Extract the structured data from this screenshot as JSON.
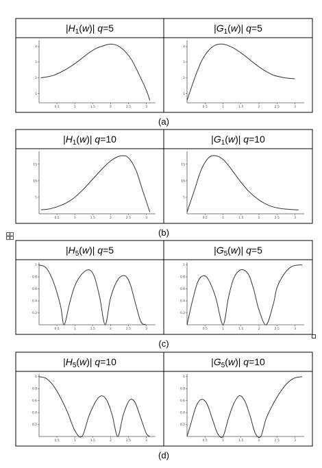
{
  "table_controls": {
    "move_handle": "move-cross-icon",
    "resize_handle": "resize-square-icon"
  },
  "chart_data": [
    {
      "caption": "(a)",
      "type": "line",
      "panels": [
        {
          "title": {
            "mag": "H",
            "sub": "1",
            "arg": "(w)",
            "q": "q=5"
          },
          "x": [
            0.05,
            0.2,
            0.4,
            0.6,
            0.8,
            1.0,
            1.2,
            1.4,
            1.6,
            1.8,
            2.0,
            2.2,
            2.4,
            2.6,
            2.8,
            3.0,
            3.1
          ],
          "y": [
            2.0,
            2.05,
            2.15,
            2.35,
            2.6,
            2.9,
            3.25,
            3.6,
            3.88,
            4.05,
            4.15,
            4.05,
            3.7,
            3.1,
            2.2,
            1.2,
            0.55
          ],
          "xticks": [
            "0.5",
            "1",
            "1.5",
            "2",
            "2.5",
            "3"
          ],
          "xtick_values": [
            0.5,
            1,
            1.5,
            2,
            2.5,
            3
          ],
          "yticks": [
            "1",
            "2",
            "3",
            "4"
          ],
          "ytick_values": [
            1,
            2,
            3,
            4
          ],
          "xlim": [
            0,
            3.2
          ],
          "ylim": [
            0.4,
            4.3
          ]
        },
        {
          "title": {
            "mag": "G",
            "sub": "1",
            "arg": "(w)",
            "q": "q=5"
          },
          "x": [
            0.0,
            0.2,
            0.4,
            0.6,
            0.8,
            1.0,
            1.2,
            1.4,
            1.6,
            1.8,
            2.0,
            2.2,
            2.4,
            2.6,
            2.8,
            3.0
          ],
          "y": [
            0.55,
            1.9,
            3.05,
            3.75,
            4.1,
            4.15,
            4.0,
            3.75,
            3.42,
            3.05,
            2.7,
            2.4,
            2.17,
            2.05,
            1.97,
            1.93
          ],
          "xticks": [
            "0.5",
            "1",
            "1.5",
            "2",
            "2.5",
            "3"
          ],
          "xtick_values": [
            0.5,
            1,
            1.5,
            2,
            2.5,
            3
          ],
          "yticks": [
            "1",
            "2",
            "3",
            "4"
          ],
          "ytick_values": [
            1,
            2,
            3,
            4
          ],
          "xlim": [
            0,
            3.2
          ],
          "ylim": [
            0.4,
            4.3
          ]
        }
      ]
    },
    {
      "caption": "(b)",
      "type": "line",
      "panels": [
        {
          "title": {
            "mag": "H",
            "sub": "1",
            "arg": "(w)",
            "q": "q=10"
          },
          "x": [
            0.05,
            0.3,
            0.6,
            0.9,
            1.2,
            1.5,
            1.8,
            2.0,
            2.2,
            2.35,
            2.5,
            2.7,
            2.9,
            3.1
          ],
          "y": [
            1.2,
            1.5,
            2.5,
            4.2,
            7.0,
            10.5,
            14.0,
            16.0,
            17.3,
            17.6,
            17.0,
            13.5,
            7.0,
            0.5
          ],
          "xticks": [
            "0.5",
            "1",
            "1.5",
            "2",
            "2.5",
            "3"
          ],
          "xtick_values": [
            0.5,
            1,
            1.5,
            2,
            2.5,
            3
          ],
          "yticks": [
            "5",
            "10",
            "15"
          ],
          "ytick_values": [
            5,
            10,
            15
          ],
          "xlim": [
            0,
            3.2
          ],
          "ylim": [
            0,
            18.5
          ]
        },
        {
          "title": {
            "mag": "G",
            "sub": "1",
            "arg": "(w)",
            "q": "q=10"
          },
          "x": [
            0.0,
            0.2,
            0.4,
            0.6,
            0.8,
            1.0,
            1.2,
            1.4,
            1.7,
            2.0,
            2.3,
            2.6,
            2.9,
            3.1
          ],
          "y": [
            0.5,
            7.0,
            13.5,
            17.0,
            17.6,
            16.5,
            14.0,
            11.0,
            7.0,
            4.2,
            2.4,
            1.6,
            1.3,
            1.2
          ],
          "xticks": [
            "0.5",
            "1",
            "1.5",
            "2",
            "2.5",
            "3"
          ],
          "xtick_values": [
            0.5,
            1,
            1.5,
            2,
            2.5,
            3
          ],
          "yticks": [
            "5",
            "10",
            "15"
          ],
          "ytick_values": [
            5,
            10,
            15
          ],
          "xlim": [
            0,
            3.2
          ],
          "ylim": [
            0,
            18.5
          ]
        }
      ]
    },
    {
      "caption": "(c)",
      "type": "line",
      "panels": [
        {
          "title": {
            "mag": "H",
            "sub": "5",
            "arg": "(w)",
            "q": "q=5"
          },
          "x": [
            0.0,
            0.2,
            0.4,
            0.6,
            0.7,
            0.85,
            1.0,
            1.2,
            1.4,
            1.55,
            1.7,
            1.85,
            2.0,
            2.2,
            2.4,
            2.55,
            2.7,
            2.85,
            3.0
          ],
          "y": [
            1.0,
            0.95,
            0.72,
            0.32,
            0.0,
            0.35,
            0.65,
            0.85,
            0.92,
            0.8,
            0.45,
            0.0,
            0.45,
            0.75,
            0.82,
            0.68,
            0.35,
            0.05,
            0.0
          ],
          "xticks": [
            "0.5",
            "1",
            "1.5",
            "2",
            "2.5",
            "3"
          ],
          "xtick_values": [
            0.5,
            1,
            1.5,
            2,
            2.5,
            3
          ],
          "yticks": [
            "0.2",
            "0.4",
            "0.6",
            "0.8",
            "1"
          ],
          "ytick_values": [
            0.2,
            0.4,
            0.6,
            0.8,
            1
          ],
          "xlim": [
            0,
            3.2
          ],
          "ylim": [
            0,
            1.02
          ]
        },
        {
          "title": {
            "mag": "G",
            "sub": "5",
            "arg": "(w)",
            "q": "q=5"
          },
          "x": [
            0.0,
            0.15,
            0.3,
            0.45,
            0.6,
            0.8,
            1.0,
            1.15,
            1.3,
            1.5,
            1.7,
            1.85,
            2.0,
            2.2,
            2.4,
            2.5,
            2.7,
            2.9,
            3.1,
            3.2
          ],
          "y": [
            0.0,
            0.4,
            0.72,
            0.82,
            0.75,
            0.45,
            0.0,
            0.45,
            0.78,
            0.92,
            0.85,
            0.6,
            0.25,
            0.0,
            0.35,
            0.62,
            0.85,
            0.97,
            1.0,
            1.0
          ],
          "xticks": [
            "0.5",
            "1",
            "1.5",
            "2",
            "2.5",
            "3"
          ],
          "xtick_values": [
            0.5,
            1,
            1.5,
            2,
            2.5,
            3
          ],
          "yticks": [
            "0.2",
            "0.4",
            "0.6",
            "0.8",
            "1"
          ],
          "ytick_values": [
            0.2,
            0.4,
            0.6,
            0.8,
            1
          ],
          "xlim": [
            0,
            3.2
          ],
          "ylim": [
            0,
            1.02
          ]
        }
      ]
    },
    {
      "caption": "(d)",
      "type": "line",
      "panels": [
        {
          "title": {
            "mag": "H",
            "sub": "5",
            "arg": "(w)",
            "q": "q=10"
          },
          "x": [
            0.0,
            0.2,
            0.4,
            0.6,
            0.8,
            1.0,
            1.2,
            1.4,
            1.6,
            1.75,
            1.9,
            2.05,
            2.2,
            2.35,
            2.5,
            2.6,
            2.7,
            2.85,
            3.0,
            3.1
          ],
          "y": [
            1.0,
            0.97,
            0.85,
            0.65,
            0.4,
            0.1,
            0.0,
            0.35,
            0.6,
            0.68,
            0.6,
            0.35,
            0.0,
            0.35,
            0.58,
            0.62,
            0.55,
            0.3,
            0.05,
            0.0
          ],
          "xticks": [
            "0.5",
            "1",
            "1.5",
            "2",
            "2.5",
            "3"
          ],
          "xtick_values": [
            0.5,
            1,
            1.5,
            2,
            2.5,
            3
          ],
          "yticks": [
            "0.2",
            "0.4",
            "0.6",
            "0.8",
            "1"
          ],
          "ytick_values": [
            0.2,
            0.4,
            0.6,
            0.8,
            1
          ],
          "xlim": [
            0,
            3.2
          ],
          "ylim": [
            0,
            1.02
          ]
        },
        {
          "title": {
            "mag": "G",
            "sub": "5",
            "arg": "(w)",
            "q": "q=10"
          },
          "x": [
            0.0,
            0.1,
            0.25,
            0.4,
            0.55,
            0.7,
            0.85,
            1.0,
            1.15,
            1.3,
            1.45,
            1.6,
            1.75,
            1.9,
            2.05,
            2.2,
            2.4,
            2.6,
            2.8,
            3.0,
            3.2
          ],
          "y": [
            0.0,
            0.2,
            0.5,
            0.62,
            0.55,
            0.3,
            0.05,
            0.0,
            0.3,
            0.55,
            0.68,
            0.6,
            0.35,
            0.05,
            0.0,
            0.3,
            0.55,
            0.75,
            0.9,
            0.98,
            1.0
          ],
          "xticks": [
            "0.5",
            "1",
            "1.5",
            "2",
            "2.5",
            "3"
          ],
          "xtick_values": [
            0.5,
            1,
            1.5,
            2,
            2.5,
            3
          ],
          "yticks": [
            "0.2",
            "0.4",
            "0.6",
            "0.8",
            "1"
          ],
          "ytick_values": [
            0.2,
            0.4,
            0.6,
            0.8,
            1
          ],
          "xlim": [
            0,
            3.2
          ],
          "ylim": [
            0,
            1.02
          ]
        }
      ]
    }
  ]
}
